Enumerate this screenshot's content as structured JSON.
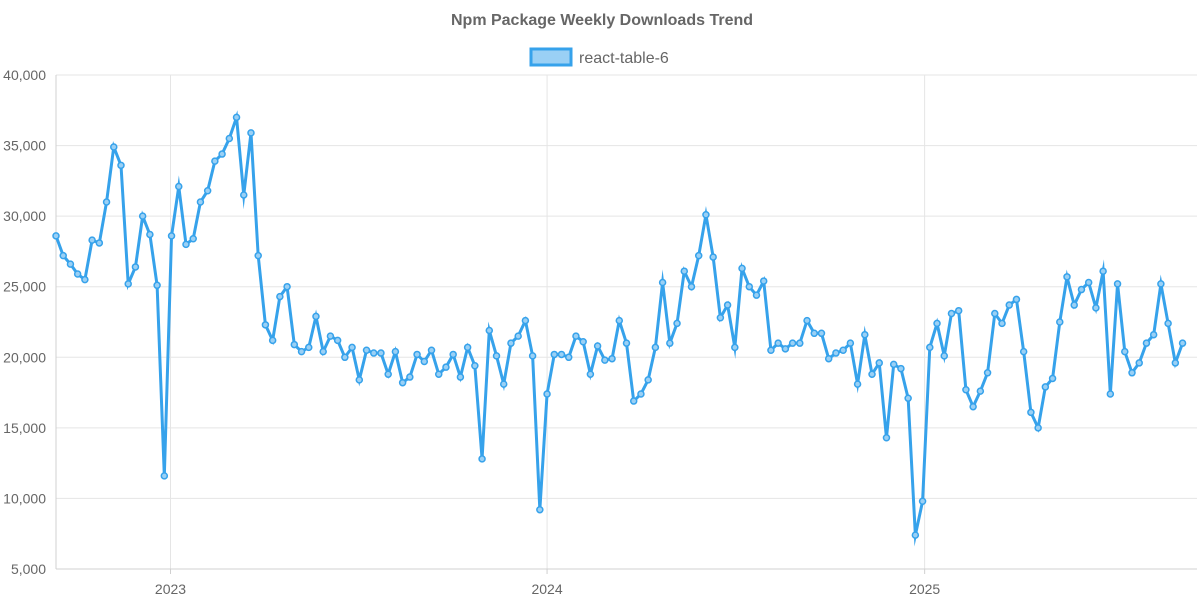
{
  "chart_data": {
    "type": "line",
    "title": "Npm Package Weekly Downloads Trend",
    "xlabel": "",
    "ylabel": "",
    "ylim": [
      5000,
      40000
    ],
    "xlim": [
      "2022-09-12",
      "2025-09-22"
    ],
    "y_ticks": [
      "5,000",
      "10,000",
      "15,000",
      "20,000",
      "25,000",
      "30,000",
      "35,000",
      "40,000"
    ],
    "x_ticks": [
      {
        "label": "2023",
        "date": "2023-01-01"
      },
      {
        "label": "2024",
        "date": "2024-01-01"
      },
      {
        "label": "2025",
        "date": "2025-01-01"
      }
    ],
    "grid": true,
    "legend_position": "top-center",
    "series": [
      {
        "name": "react-table-6",
        "color": "#36A2EB",
        "fill_color": "#9AD0F5",
        "start_date": "2022-09-12",
        "interval_days": 7,
        "values": [
          28600,
          27200,
          26600,
          25900,
          25500,
          28300,
          28100,
          31000,
          34900,
          33600,
          25200,
          26400,
          30000,
          28700,
          25100,
          11600,
          28600,
          32100,
          28000,
          28400,
          31000,
          31800,
          33900,
          34400,
          35500,
          37000,
          31500,
          35900,
          27200,
          22300,
          21200,
          24300,
          25000,
          20900,
          20400,
          20700,
          22900,
          20400,
          21500,
          21200,
          20000,
          20700,
          18400,
          20500,
          20300,
          20300,
          18800,
          20400,
          18200,
          18600,
          20200,
          19700,
          20500,
          18800,
          19300,
          20200,
          18600,
          20700,
          19400,
          12800,
          21900,
          20100,
          18100,
          21000,
          21500,
          22600,
          20100,
          9200,
          17400,
          20200,
          20200,
          20000,
          21500,
          21100,
          18800,
          20800,
          19800,
          19900,
          22600,
          21000,
          16900,
          17400,
          18400,
          20700,
          25300,
          21000,
          22400,
          26100,
          25000,
          27200,
          30100,
          27100,
          22800,
          23700,
          20700,
          26300,
          25000,
          24400,
          25400,
          20500,
          21000,
          20600,
          21000,
          21000,
          22600,
          21700,
          21700,
          19900,
          20300,
          20500,
          21000,
          18100,
          21600,
          18800,
          19600,
          14300,
          19500,
          19200,
          17100,
          7400,
          9800,
          20700,
          22400,
          20100,
          23100,
          23300,
          17700,
          16500,
          17600,
          18900,
          23100,
          22400,
          23700,
          24100,
          20400,
          16100,
          15000,
          17900,
          18500,
          22500,
          25700,
          23700,
          24800,
          25300,
          23500,
          26100,
          17400,
          25200,
          20400,
          18900,
          19600,
          21000,
          21600,
          25200,
          22400,
          19600,
          21000
        ]
      }
    ]
  }
}
